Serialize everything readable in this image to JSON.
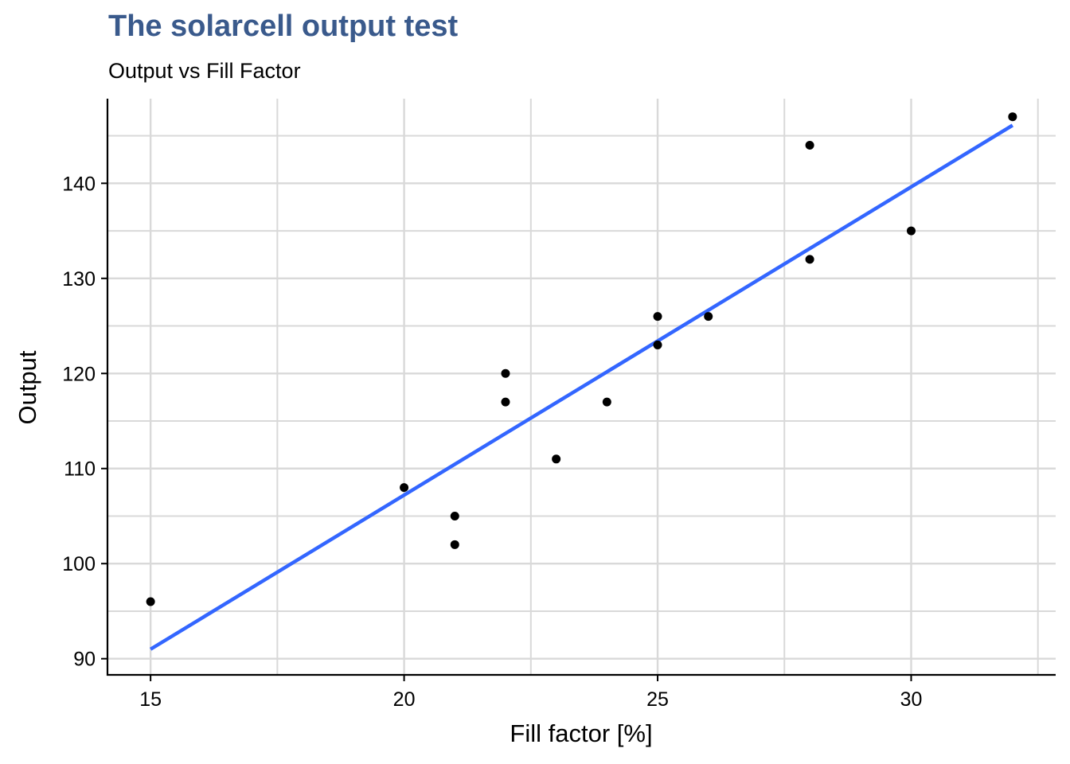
{
  "chart_data": {
    "type": "scatter",
    "title": "The solarcell output test",
    "subtitle": "Output vs Fill Factor",
    "xlabel": "Fill factor [%]",
    "ylabel": "Output",
    "xlim": [
      14.15,
      32.85
    ],
    "ylim": [
      88.3,
      148.9
    ],
    "xticks": [
      15,
      20,
      25,
      30
    ],
    "yticks": [
      90,
      100,
      110,
      120,
      130,
      140
    ],
    "x_minor_grid": [
      17.5,
      22.5,
      27.5,
      32.5
    ],
    "y_minor_grid": [
      95,
      105,
      115,
      125,
      135,
      145
    ],
    "grid": true,
    "points": [
      {
        "x": 15,
        "y": 96
      },
      {
        "x": 20,
        "y": 108
      },
      {
        "x": 21,
        "y": 105
      },
      {
        "x": 21,
        "y": 102
      },
      {
        "x": 22,
        "y": 120
      },
      {
        "x": 22,
        "y": 117
      },
      {
        "x": 23,
        "y": 111
      },
      {
        "x": 24,
        "y": 117
      },
      {
        "x": 25,
        "y": 126
      },
      {
        "x": 25,
        "y": 123
      },
      {
        "x": 26,
        "y": 126
      },
      {
        "x": 28,
        "y": 144
      },
      {
        "x": 28,
        "y": 132
      },
      {
        "x": 30,
        "y": 135
      },
      {
        "x": 32,
        "y": 147
      }
    ],
    "trend_line": {
      "x": [
        15,
        32
      ],
      "y": [
        91.0,
        146.1
      ]
    },
    "colors": {
      "points": "#000000",
      "trend": "#3366ff",
      "grid": "#d9d9d9",
      "title": "#3a5a8c"
    }
  }
}
